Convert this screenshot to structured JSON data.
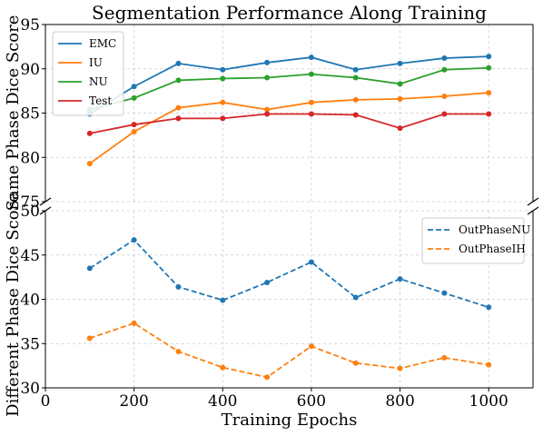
{
  "chart_data": {
    "type": "line",
    "title": "Segmentation Performance Along Training",
    "xlabel": "Training Epochs",
    "xlim": [
      0,
      1100
    ],
    "xticks": [
      0,
      200,
      400,
      600,
      800,
      1000
    ],
    "grid": true,
    "panels": [
      {
        "id": "top",
        "ylabel": "Same Phase Dice Score",
        "ylim": [
          75,
          95
        ],
        "yticks": [
          75,
          80,
          85,
          90,
          95
        ],
        "legend_position": "top-left",
        "series": [
          {
            "name": "EMC",
            "color": "#1f77b4",
            "line_style": "solid",
            "x": [
              100,
              200,
              300,
              400,
              500,
              600,
              700,
              800,
              900,
              1000
            ],
            "y": [
              84.9,
              88.0,
              90.6,
              89.9,
              90.7,
              91.3,
              89.9,
              90.6,
              91.2,
              91.4
            ]
          },
          {
            "name": "IU",
            "color": "#ff7f0e",
            "line_style": "solid",
            "x": [
              100,
              200,
              300,
              400,
              500,
              600,
              700,
              800,
              900,
              1000
            ],
            "y": [
              79.3,
              82.9,
              85.6,
              86.2,
              85.4,
              86.2,
              86.5,
              86.6,
              86.9,
              87.3
            ]
          },
          {
            "name": "NU",
            "color": "#2ca02c",
            "line_style": "solid",
            "x": [
              100,
              200,
              300,
              400,
              500,
              600,
              700,
              800,
              900,
              1000
            ],
            "y": [
              85.4,
              86.7,
              88.7,
              88.9,
              89.0,
              89.4,
              89.0,
              88.3,
              89.9,
              90.1
            ]
          },
          {
            "name": "Test",
            "color": "#d62728",
            "line_style": "solid",
            "x": [
              100,
              200,
              300,
              400,
              500,
              600,
              700,
              800,
              900,
              1000
            ],
            "y": [
              82.7,
              83.7,
              84.4,
              84.4,
              84.9,
              84.9,
              84.8,
              83.3,
              84.9,
              84.9
            ]
          }
        ]
      },
      {
        "id": "bottom",
        "ylabel": "Different Phase Dice Score",
        "ylim": [
          30,
          50
        ],
        "yticks": [
          30,
          35,
          40,
          45,
          50
        ],
        "legend_position": "top-right",
        "series": [
          {
            "name": "OutPhaseNU",
            "color": "#1f77b4",
            "line_style": "dashed",
            "x": [
              100,
              200,
              300,
              400,
              500,
              600,
              700,
              800,
              900,
              1000
            ],
            "y": [
              43.5,
              46.7,
              41.4,
              39.9,
              41.9,
              44.2,
              40.2,
              42.3,
              40.7,
              39.1
            ]
          },
          {
            "name": "OutPhaseIH",
            "color": "#ff7f0e",
            "line_style": "dashed",
            "x": [
              100,
              200,
              300,
              400,
              500,
              600,
              700,
              800,
              900,
              1000
            ],
            "y": [
              35.6,
              37.3,
              34.1,
              32.3,
              31.2,
              34.7,
              32.8,
              32.2,
              33.4,
              32.6
            ]
          }
        ]
      }
    ]
  }
}
